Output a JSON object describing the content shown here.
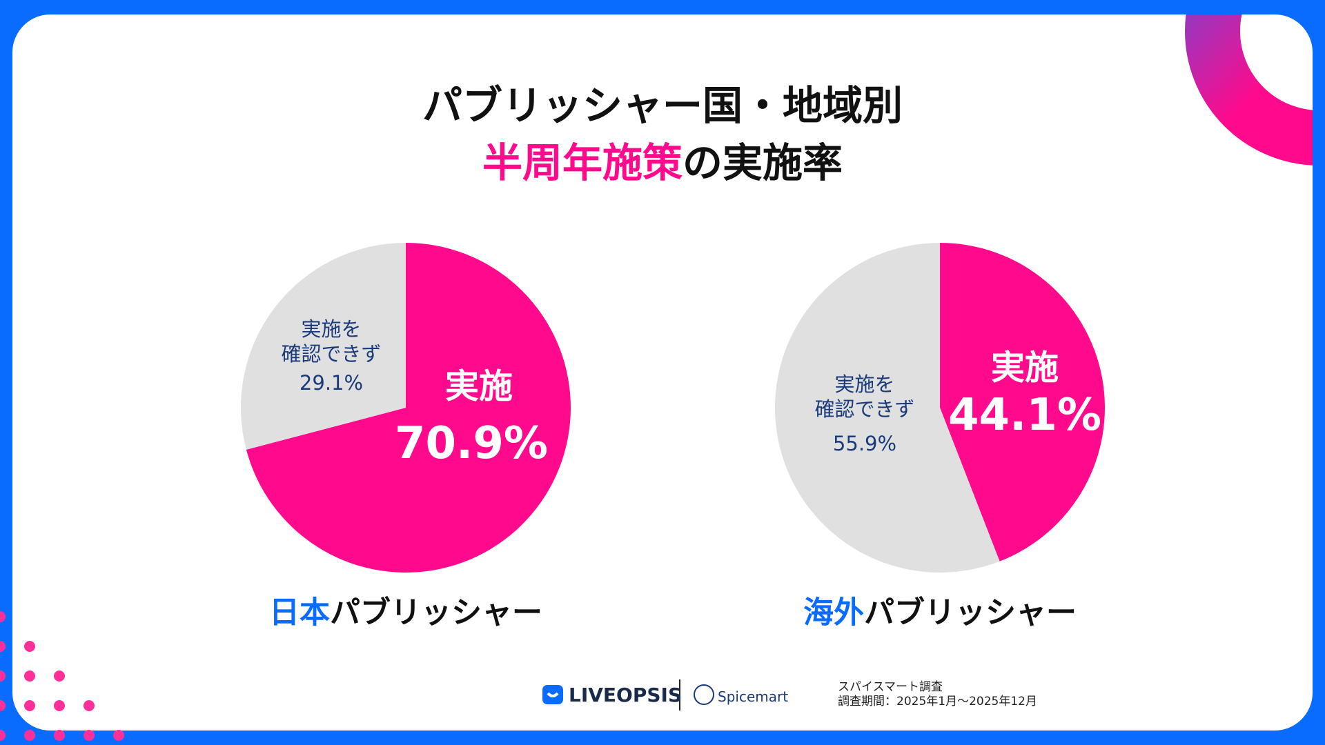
{
  "header": {
    "title_line1": "パブリッシャー国・地域別",
    "title_line2_highlight": "半周年施策",
    "title_line2_rest": "の実施率"
  },
  "chart_data": [
    {
      "type": "pie",
      "subtitle_highlight": "日本",
      "subtitle": "パブリッシャー",
      "categories": [
        "実施",
        "実施を\n確認できず"
      ],
      "values": [
        70.9,
        29.1
      ],
      "value_labels": [
        "70.9%",
        "29.1%"
      ],
      "colors": [
        "#ff0a8c",
        "#e0e0e0"
      ]
    },
    {
      "type": "pie",
      "subtitle_highlight": "海外",
      "subtitle": "パブリッシャー",
      "categories": [
        "実施",
        "実施を\n確認できず"
      ],
      "values": [
        44.1,
        55.9
      ],
      "value_labels": [
        "44.1%",
        "55.9%"
      ],
      "colors": [
        "#ff0a8c",
        "#e0e0e0"
      ]
    }
  ],
  "footer": {
    "logo1": "LIVEOPSIS",
    "logo2": "Spicemart",
    "source": "スパイスマート調査",
    "period": "調査期間：2025年1月〜2025年12月"
  }
}
